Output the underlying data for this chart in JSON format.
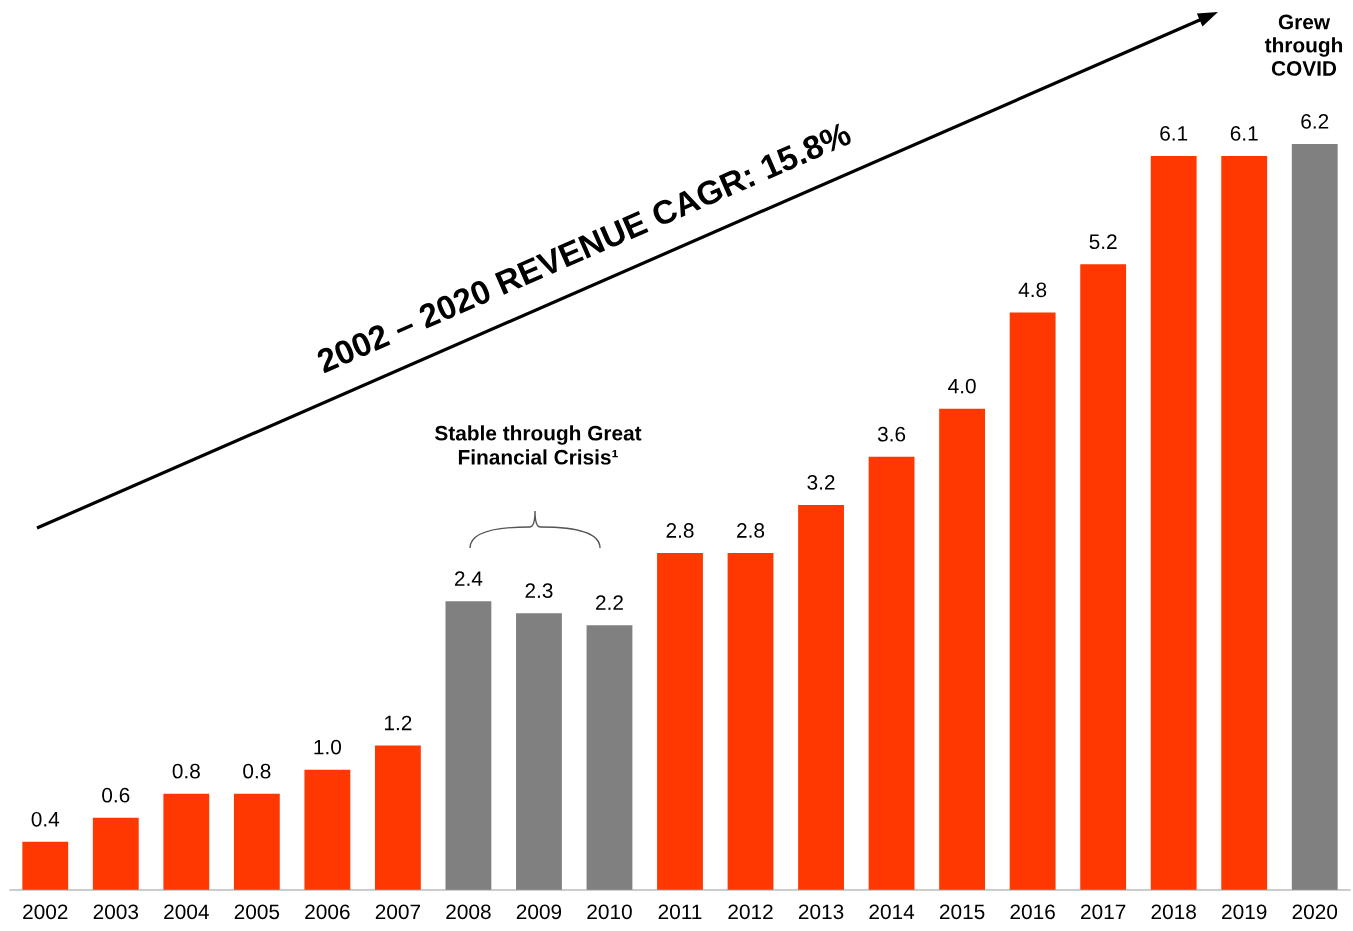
{
  "chart_data": {
    "type": "bar",
    "categories": [
      "2002",
      "2003",
      "2004",
      "2005",
      "2006",
      "2007",
      "2008",
      "2009",
      "2010",
      "2011",
      "2012",
      "2013",
      "2014",
      "2015",
      "2016",
      "2017",
      "2018",
      "2019",
      "2020"
    ],
    "values": [
      0.4,
      0.6,
      0.8,
      0.8,
      1.0,
      1.2,
      2.4,
      2.3,
      2.2,
      2.8,
      2.8,
      3.2,
      3.6,
      4.0,
      4.8,
      5.2,
      6.1,
      6.1,
      6.2
    ],
    "colors": [
      "#ff3700",
      "#ff3700",
      "#ff3700",
      "#ff3700",
      "#ff3700",
      "#ff3700",
      "#808080",
      "#808080",
      "#808080",
      "#ff3700",
      "#ff3700",
      "#ff3700",
      "#ff3700",
      "#ff3700",
      "#ff3700",
      "#ff3700",
      "#ff3700",
      "#ff3700",
      "#808080"
    ],
    "value_labels": [
      "0.4",
      "0.6",
      "0.8",
      "0.8",
      "1.0",
      "1.2",
      "2.4",
      "2.3",
      "2.2",
      "2.8",
      "2.8",
      "3.2",
      "3.6",
      "4.0",
      "4.8",
      "5.2",
      "6.1",
      "6.1",
      "6.2"
    ],
    "tick_labels": "x",
    "annotations": [
      "2002 – 2020 REVENUE CAGR: 15.8%",
      "Stable through Great\nFinancial Crisis¹",
      "Grew\nthrough\nCOVID"
    ]
  }
}
